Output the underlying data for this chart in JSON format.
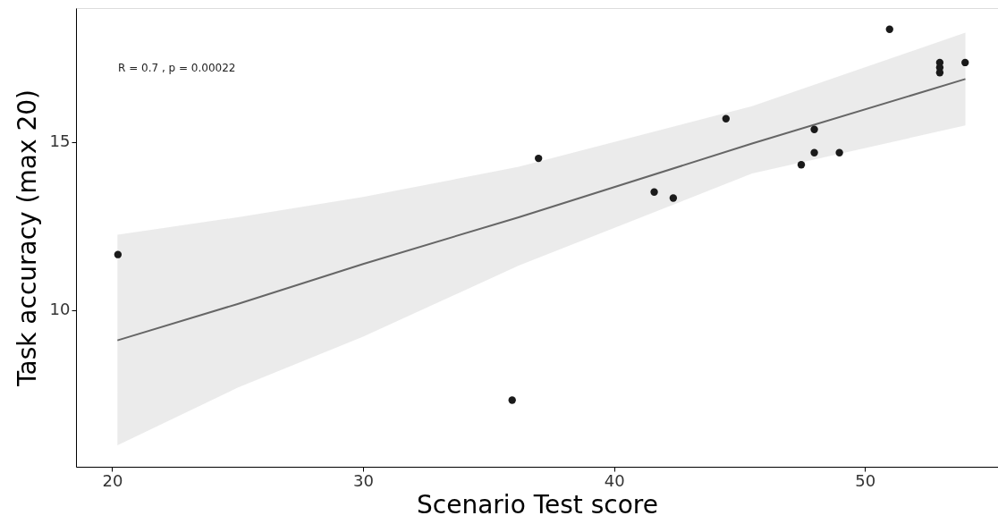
{
  "chart_data": {
    "type": "scatter",
    "xlabel": "Scenario Test score",
    "ylabel": "Task accuracy (max 20)",
    "annotations": [
      "R = 0.7 , p = 0.00022"
    ],
    "xlim": [
      18.56,
      55.3
    ],
    "ylim": [
      5.34,
      18.98
    ],
    "xticks": [
      20,
      30,
      40,
      50
    ],
    "yticks": [
      10,
      15
    ],
    "grid": false,
    "legend": false,
    "series": [
      {
        "type": "line",
        "color": "#666666",
        "x": [
          20.21,
          25,
          30,
          36.2,
          45.5,
          54
        ],
        "values": [
          9.1,
          10.18,
          11.37,
          12.76,
          14.95,
          16.87
        ],
        "lower": [
          5.98,
          7.69,
          9.21,
          11.32,
          14.06,
          15.49
        ],
        "upper": [
          12.24,
          12.76,
          13.36,
          14.26,
          16.06,
          18.25
        ]
      },
      {
        "color": "#1a1a1a",
        "marker": "circle",
        "x": [
          20.23,
          35.94,
          36.99,
          41.6,
          42.36,
          44.46,
          47.46,
          47.98,
          47.98,
          48.98,
          50.98,
          52.98,
          52.98,
          52.98,
          53.99
        ],
        "values": [
          11.65,
          7.32,
          14.51,
          13.51,
          13.33,
          15.69,
          14.32,
          15.37,
          14.68,
          14.68,
          18.35,
          17.36,
          17.21,
          17.06,
          17.36
        ]
      }
    ]
  }
}
